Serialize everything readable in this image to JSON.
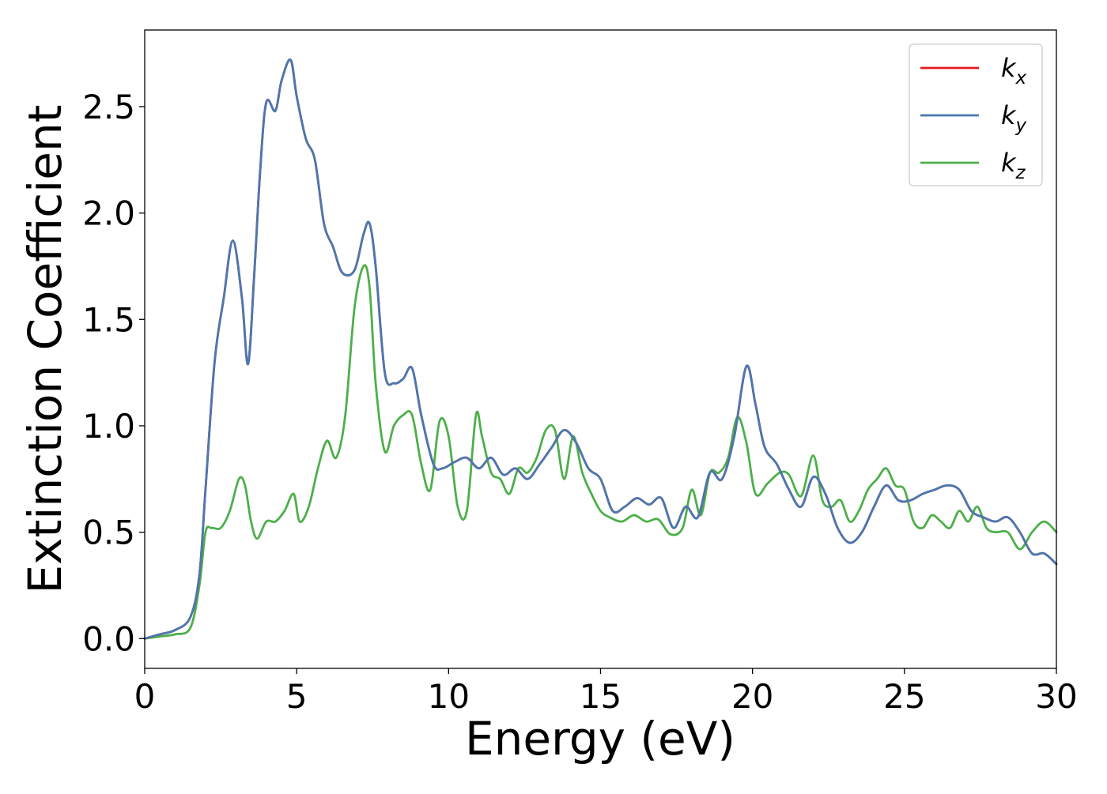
{
  "chart_data": {
    "type": "line",
    "title": "",
    "xlabel": "Energy (eV)",
    "ylabel": "Extinction Coefficient",
    "xlim": [
      0,
      30
    ],
    "ylim": [
      -0.14,
      2.86
    ],
    "xticks": [
      0,
      5,
      10,
      15,
      20,
      25,
      30
    ],
    "xtick_labels": [
      "0",
      "5",
      "10",
      "15",
      "20",
      "25",
      "30"
    ],
    "yticks": [
      0.0,
      0.5,
      1.0,
      1.5,
      2.0,
      2.5
    ],
    "ytick_labels": [
      "0.0",
      "0.5",
      "1.0",
      "1.5",
      "2.0",
      "2.5"
    ],
    "grid": false,
    "legend_position": "top-right",
    "series": [
      {
        "name": "k_x",
        "legend_base": "k",
        "legend_sub": "x",
        "color": "#e41a1c",
        "x": [
          0,
          0.5,
          1.0,
          1.5,
          1.8,
          2.0,
          2.3,
          2.6,
          2.9,
          3.2,
          3.4,
          3.6,
          3.8,
          4.0,
          4.3,
          4.5,
          4.8,
          5.0,
          5.3,
          5.6,
          5.9,
          6.2,
          6.5,
          6.9,
          7.2,
          7.4,
          7.6,
          7.9,
          8.2,
          8.5,
          8.8,
          9.1,
          9.5,
          9.8,
          10.2,
          10.6,
          11.0,
          11.4,
          11.8,
          12.2,
          12.6,
          13.0,
          13.4,
          13.8,
          14.2,
          14.6,
          15.0,
          15.4,
          15.8,
          16.2,
          16.6,
          17.0,
          17.4,
          17.8,
          18.2,
          18.6,
          19.0,
          19.4,
          19.8,
          20.1,
          20.4,
          20.8,
          21.2,
          21.6,
          22.0,
          22.4,
          22.8,
          23.2,
          23.6,
          24.0,
          24.4,
          24.8,
          25.2,
          25.6,
          26.0,
          26.4,
          26.8,
          27.2,
          27.6,
          28.0,
          28.4,
          28.8,
          29.2,
          29.6,
          30.0
        ],
        "y": [
          0.0,
          0.02,
          0.04,
          0.1,
          0.3,
          0.7,
          1.3,
          1.6,
          1.87,
          1.6,
          1.29,
          1.7,
          2.2,
          2.52,
          2.48,
          2.62,
          2.72,
          2.55,
          2.35,
          2.25,
          1.95,
          1.84,
          1.72,
          1.73,
          1.9,
          1.95,
          1.75,
          1.25,
          1.2,
          1.22,
          1.27,
          1.05,
          0.82,
          0.8,
          0.83,
          0.85,
          0.8,
          0.85,
          0.77,
          0.8,
          0.75,
          0.82,
          0.9,
          0.98,
          0.92,
          0.8,
          0.75,
          0.6,
          0.62,
          0.66,
          0.63,
          0.66,
          0.52,
          0.62,
          0.57,
          0.78,
          0.75,
          0.95,
          1.28,
          1.1,
          0.9,
          0.82,
          0.7,
          0.62,
          0.76,
          0.68,
          0.52,
          0.45,
          0.5,
          0.62,
          0.72,
          0.65,
          0.65,
          0.68,
          0.7,
          0.72,
          0.7,
          0.6,
          0.57,
          0.55,
          0.57,
          0.5,
          0.4,
          0.4,
          0.35
        ]
      },
      {
        "name": "k_y",
        "legend_base": "k",
        "legend_sub": "y",
        "color": "#4a78b0",
        "x": [
          0,
          0.5,
          1.0,
          1.5,
          1.8,
          2.0,
          2.3,
          2.6,
          2.9,
          3.2,
          3.4,
          3.6,
          3.8,
          4.0,
          4.3,
          4.5,
          4.8,
          5.0,
          5.3,
          5.6,
          5.9,
          6.2,
          6.5,
          6.9,
          7.2,
          7.4,
          7.6,
          7.9,
          8.2,
          8.5,
          8.8,
          9.1,
          9.5,
          9.8,
          10.2,
          10.6,
          11.0,
          11.4,
          11.8,
          12.2,
          12.6,
          13.0,
          13.4,
          13.8,
          14.2,
          14.6,
          15.0,
          15.4,
          15.8,
          16.2,
          16.6,
          17.0,
          17.4,
          17.8,
          18.2,
          18.6,
          19.0,
          19.4,
          19.8,
          20.1,
          20.4,
          20.8,
          21.2,
          21.6,
          22.0,
          22.4,
          22.8,
          23.2,
          23.6,
          24.0,
          24.4,
          24.8,
          25.2,
          25.6,
          26.0,
          26.4,
          26.8,
          27.2,
          27.6,
          28.0,
          28.4,
          28.8,
          29.2,
          29.6,
          30.0
        ],
        "y": [
          0.0,
          0.02,
          0.04,
          0.1,
          0.3,
          0.7,
          1.3,
          1.6,
          1.87,
          1.6,
          1.29,
          1.7,
          2.2,
          2.52,
          2.48,
          2.62,
          2.72,
          2.55,
          2.35,
          2.25,
          1.95,
          1.84,
          1.72,
          1.73,
          1.9,
          1.95,
          1.75,
          1.25,
          1.2,
          1.22,
          1.27,
          1.05,
          0.82,
          0.8,
          0.83,
          0.85,
          0.8,
          0.85,
          0.77,
          0.8,
          0.75,
          0.82,
          0.9,
          0.98,
          0.92,
          0.8,
          0.75,
          0.6,
          0.62,
          0.66,
          0.63,
          0.66,
          0.52,
          0.62,
          0.57,
          0.78,
          0.75,
          0.95,
          1.28,
          1.1,
          0.9,
          0.82,
          0.7,
          0.62,
          0.76,
          0.68,
          0.52,
          0.45,
          0.5,
          0.62,
          0.72,
          0.65,
          0.65,
          0.68,
          0.7,
          0.72,
          0.7,
          0.6,
          0.57,
          0.55,
          0.57,
          0.5,
          0.4,
          0.4,
          0.35
        ]
      },
      {
        "name": "k_z",
        "legend_base": "k",
        "legend_sub": "z",
        "color": "#4daf4a",
        "x": [
          0,
          0.5,
          1.0,
          1.5,
          1.8,
          2.0,
          2.2,
          2.5,
          2.8,
          3.1,
          3.3,
          3.5,
          3.7,
          4.0,
          4.3,
          4.6,
          4.9,
          5.1,
          5.4,
          5.7,
          6.0,
          6.3,
          6.6,
          6.9,
          7.2,
          7.4,
          7.6,
          7.9,
          8.2,
          8.5,
          8.8,
          9.1,
          9.4,
          9.7,
          10.0,
          10.3,
          10.6,
          10.9,
          11.1,
          11.4,
          11.7,
          12.0,
          12.3,
          12.6,
          12.9,
          13.2,
          13.5,
          13.8,
          14.1,
          14.4,
          14.7,
          15.0,
          15.3,
          15.7,
          16.1,
          16.5,
          16.9,
          17.3,
          17.7,
          18.0,
          18.3,
          18.6,
          18.9,
          19.2,
          19.5,
          19.8,
          20.1,
          20.5,
          20.9,
          21.2,
          21.6,
          22.0,
          22.3,
          22.6,
          22.9,
          23.2,
          23.5,
          23.8,
          24.1,
          24.4,
          24.7,
          25.0,
          25.3,
          25.6,
          25.9,
          26.2,
          26.5,
          26.8,
          27.1,
          27.4,
          27.7,
          28.0,
          28.4,
          28.8,
          29.2,
          29.6,
          30.0
        ],
        "y": [
          0.0,
          0.01,
          0.02,
          0.05,
          0.25,
          0.5,
          0.52,
          0.52,
          0.6,
          0.75,
          0.72,
          0.55,
          0.47,
          0.55,
          0.55,
          0.6,
          0.68,
          0.55,
          0.62,
          0.8,
          0.93,
          0.85,
          1.05,
          1.55,
          1.75,
          1.65,
          1.2,
          0.88,
          1.0,
          1.05,
          1.05,
          0.82,
          0.7,
          1.02,
          0.95,
          0.62,
          0.6,
          1.05,
          0.95,
          0.78,
          0.75,
          0.68,
          0.8,
          0.78,
          0.85,
          0.98,
          0.98,
          0.75,
          0.95,
          0.78,
          0.68,
          0.6,
          0.57,
          0.55,
          0.58,
          0.55,
          0.56,
          0.49,
          0.52,
          0.7,
          0.58,
          0.78,
          0.78,
          0.85,
          1.04,
          0.92,
          0.68,
          0.73,
          0.78,
          0.77,
          0.67,
          0.86,
          0.65,
          0.62,
          0.65,
          0.55,
          0.6,
          0.7,
          0.75,
          0.8,
          0.72,
          0.7,
          0.55,
          0.52,
          0.58,
          0.55,
          0.52,
          0.6,
          0.55,
          0.62,
          0.52,
          0.5,
          0.5,
          0.42,
          0.5,
          0.55,
          0.5
        ]
      }
    ]
  }
}
